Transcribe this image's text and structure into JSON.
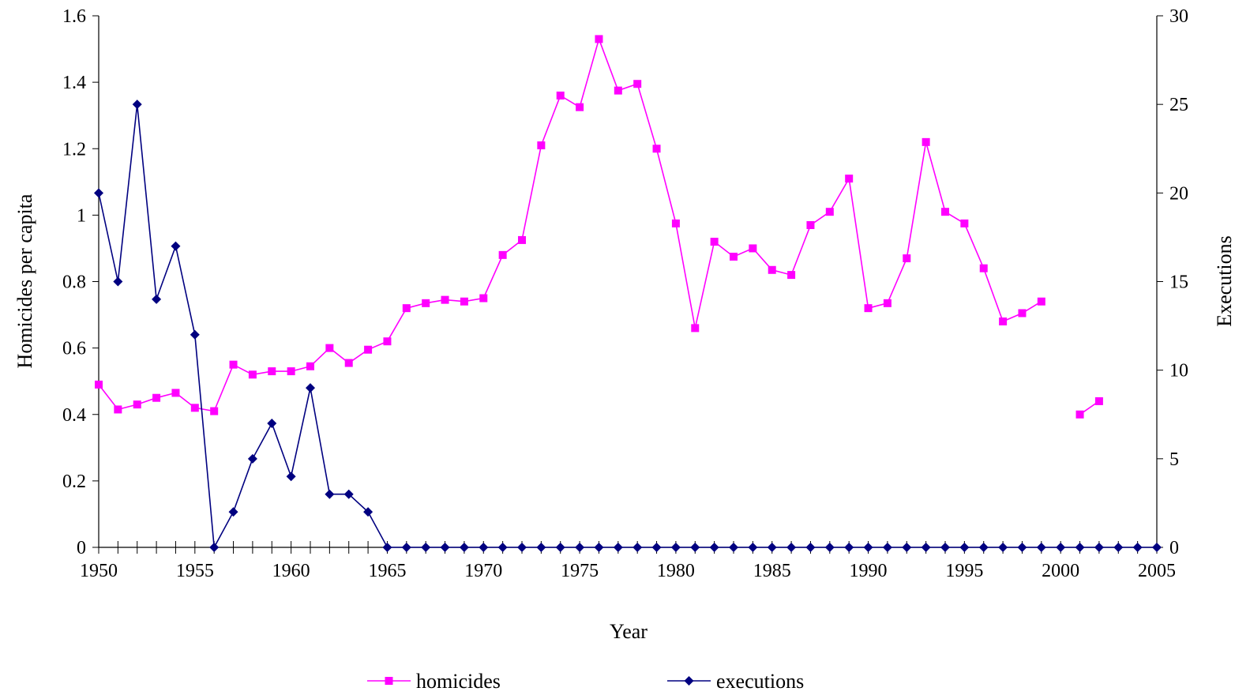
{
  "chart_data": {
    "type": "line",
    "xlabel": "Year",
    "ylabel": "Homicides per capita",
    "y2label": "Executions",
    "xlim": [
      1950,
      2005
    ],
    "ylim": [
      0,
      1.6
    ],
    "y2lim": [
      0,
      30
    ],
    "x_ticks": [
      "1950",
      "1955",
      "1960",
      "1965",
      "1970",
      "1975",
      "1980",
      "1985",
      "1990",
      "1995",
      "2000",
      "2005"
    ],
    "y_ticks": [
      "0",
      "0.2",
      "0.4",
      "0.6",
      "0.8",
      "1",
      "1.2",
      "1.4",
      "1.6"
    ],
    "y2_ticks": [
      "0",
      "5",
      "10",
      "15",
      "20",
      "25",
      "30"
    ],
    "grid": false,
    "legend_position": "bottom",
    "series": [
      {
        "name": "homicides",
        "axis": "left",
        "color": "#FF00FF",
        "marker": "square",
        "points": [
          [
            1950,
            0.49
          ],
          [
            1951,
            0.415
          ],
          [
            1952,
            0.43
          ],
          [
            1953,
            0.45
          ],
          [
            1954,
            0.465
          ],
          [
            1955,
            0.42
          ],
          [
            1956,
            0.41
          ],
          [
            1957,
            0.55
          ],
          [
            1958,
            0.52
          ],
          [
            1959,
            0.53
          ],
          [
            1960,
            0.53
          ],
          [
            1961,
            0.545
          ],
          [
            1962,
            0.6
          ],
          [
            1963,
            0.555
          ],
          [
            1964,
            0.595
          ],
          [
            1965,
            0.62
          ],
          [
            1966,
            0.72
          ],
          [
            1967,
            0.735
          ],
          [
            1968,
            0.745
          ],
          [
            1969,
            0.74
          ],
          [
            1970,
            0.75
          ],
          [
            1971,
            0.88
          ],
          [
            1972,
            0.925
          ],
          [
            1973,
            1.21
          ],
          [
            1974,
            1.36
          ],
          [
            1975,
            1.325
          ],
          [
            1976,
            1.53
          ],
          [
            1977,
            1.375
          ],
          [
            1978,
            1.395
          ],
          [
            1979,
            1.2
          ],
          [
            1980,
            0.975
          ],
          [
            1981,
            0.66
          ],
          [
            1982,
            0.92
          ],
          [
            1983,
            0.875
          ],
          [
            1984,
            0.9
          ],
          [
            1985,
            0.835
          ],
          [
            1986,
            0.82
          ],
          [
            1987,
            0.97
          ],
          [
            1988,
            1.01
          ],
          [
            1989,
            1.11
          ],
          [
            1990,
            0.72
          ],
          [
            1991,
            0.735
          ],
          [
            1992,
            0.87
          ],
          [
            1993,
            1.22
          ],
          [
            1994,
            1.01
          ],
          [
            1995,
            0.975
          ],
          [
            1996,
            0.84
          ],
          [
            1997,
            0.68
          ],
          [
            1998,
            0.705
          ],
          [
            1999,
            0.74
          ],
          [
            2000,
            null
          ],
          [
            2001,
            0.4
          ],
          [
            2002,
            0.44
          ]
        ]
      },
      {
        "name": "executions",
        "axis": "right",
        "color": "#000080",
        "marker": "diamond",
        "points": [
          [
            1950,
            20
          ],
          [
            1951,
            15
          ],
          [
            1952,
            25
          ],
          [
            1953,
            14
          ],
          [
            1954,
            17
          ],
          [
            1955,
            12
          ],
          [
            1956,
            0
          ],
          [
            1957,
            2
          ],
          [
            1958,
            5
          ],
          [
            1959,
            7
          ],
          [
            1960,
            4
          ],
          [
            1961,
            9
          ],
          [
            1962,
            3
          ],
          [
            1963,
            3
          ],
          [
            1964,
            2
          ],
          [
            1965,
            0
          ],
          [
            1966,
            0
          ],
          [
            1967,
            0
          ],
          [
            1968,
            0
          ],
          [
            1969,
            0
          ],
          [
            1970,
            0
          ],
          [
            1971,
            0
          ],
          [
            1972,
            0
          ],
          [
            1973,
            0
          ],
          [
            1974,
            0
          ],
          [
            1975,
            0
          ],
          [
            1976,
            0
          ],
          [
            1977,
            0
          ],
          [
            1978,
            0
          ],
          [
            1979,
            0
          ],
          [
            1980,
            0
          ],
          [
            1981,
            0
          ],
          [
            1982,
            0
          ],
          [
            1983,
            0
          ],
          [
            1984,
            0
          ],
          [
            1985,
            0
          ],
          [
            1986,
            0
          ],
          [
            1987,
            0
          ],
          [
            1988,
            0
          ],
          [
            1989,
            0
          ],
          [
            1990,
            0
          ],
          [
            1991,
            0
          ],
          [
            1992,
            0
          ],
          [
            1993,
            0
          ],
          [
            1994,
            0
          ],
          [
            1995,
            0
          ],
          [
            1996,
            0
          ],
          [
            1997,
            0
          ],
          [
            1998,
            0
          ],
          [
            1999,
            0
          ],
          [
            2000,
            0
          ],
          [
            2001,
            0
          ],
          [
            2002,
            0
          ],
          [
            2003,
            0
          ],
          [
            2004,
            0
          ],
          [
            2005,
            0
          ]
        ]
      }
    ]
  }
}
